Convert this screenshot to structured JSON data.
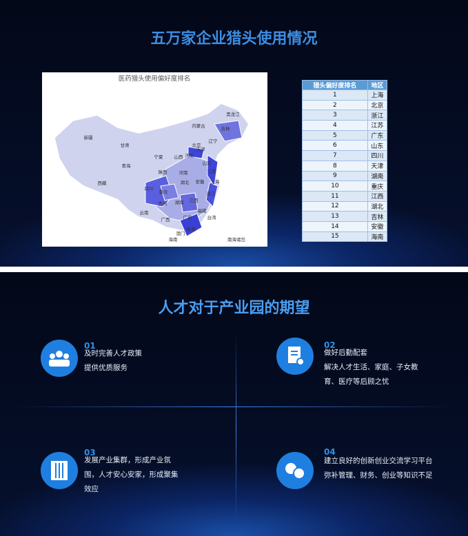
{
  "slide1": {
    "title": "五万家企业猎头使用情况",
    "map": {
      "title": "医药猎头使用偏好度排名",
      "labels": [
        "新疆",
        "西藏",
        "青海",
        "甘肃",
        "内蒙古",
        "黑龙江",
        "吉林",
        "辽宁",
        "北京",
        "天津",
        "河北",
        "山西",
        "宁夏",
        "陕西",
        "山东",
        "河南",
        "江苏",
        "四川",
        "湖北",
        "安徽",
        "上海",
        "重庆",
        "浙江",
        "贵州",
        "湖南",
        "江西",
        "福建",
        "云南",
        "广西",
        "广东",
        "台湾",
        "香港",
        "澳门",
        "海南",
        "南海诸岛"
      ]
    },
    "table": {
      "header": [
        "猎头偏好度排名",
        "地区"
      ],
      "rows": [
        [
          1,
          "上海"
        ],
        [
          2,
          "北京"
        ],
        [
          3,
          "浙江"
        ],
        [
          4,
          "江苏"
        ],
        [
          5,
          "广东"
        ],
        [
          6,
          "山东"
        ],
        [
          7,
          "四川"
        ],
        [
          8,
          "天津"
        ],
        [
          9,
          "湖南"
        ],
        [
          10,
          "重庆"
        ],
        [
          11,
          "江西"
        ],
        [
          12,
          "湖北"
        ],
        [
          13,
          "吉林"
        ],
        [
          14,
          "安徽"
        ],
        [
          15,
          "海南"
        ]
      ]
    }
  },
  "slide2": {
    "title": "人才对于产业园的期望",
    "items": [
      {
        "number": "01",
        "lines": [
          "及时完善人才政策",
          "提供优质服务"
        ]
      },
      {
        "number": "02",
        "lines": [
          "做好后勤配套",
          "解决人才生活、家庭、子女教",
          "育、医疗等后顾之忧"
        ]
      },
      {
        "number": "03",
        "lines": [
          "发展产业集群，形成产业氛",
          "围，人才安心安家，形成聚集",
          "效应"
        ]
      },
      {
        "number": "04",
        "lines": [
          "建立良好的创新创业交流学习平台",
          "弥补管理、财务、创业等知识不足"
        ]
      }
    ]
  }
}
